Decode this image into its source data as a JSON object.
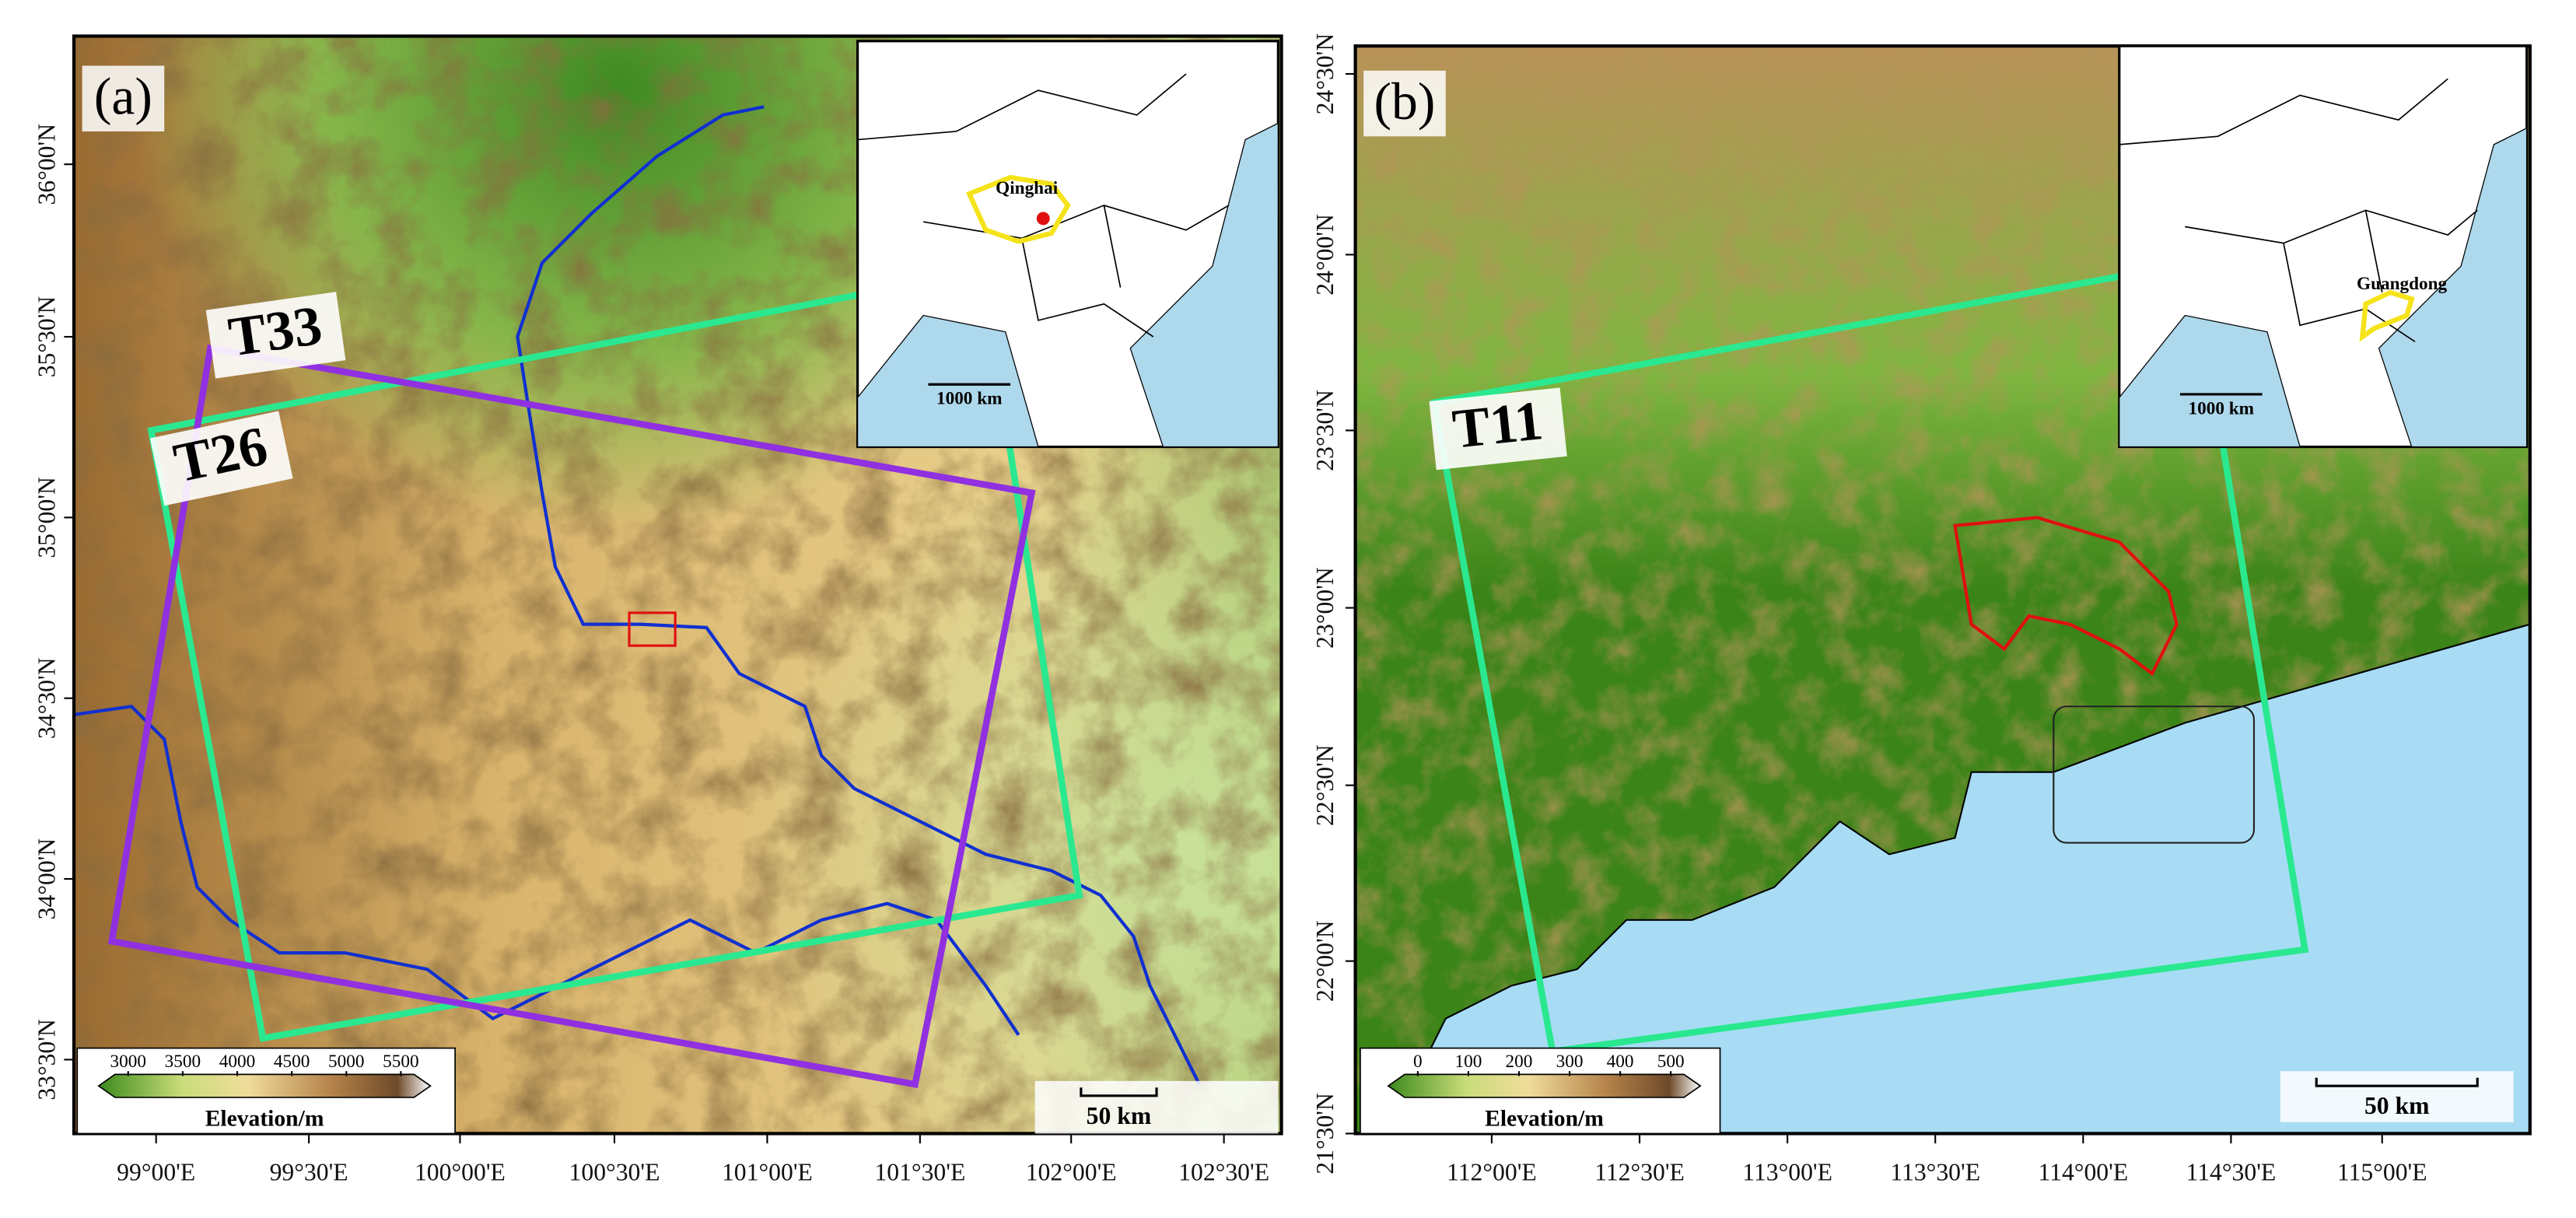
{
  "panels": [
    {
      "label": "(a)",
      "tracks": [
        "T33",
        "T26"
      ],
      "inset_label": "Qinghai",
      "inset_scale": "1000 km",
      "scale_bar": "50 km",
      "colorbar": {
        "title": "Elevation/m",
        "ticks": [
          3000,
          3500,
          4000,
          4500,
          5000,
          5500
        ]
      },
      "lat_ticks": [
        "36°00'N",
        "35°30'N",
        "35°00'N",
        "34°30'N",
        "34°00'N",
        "33°30'N"
      ],
      "lon_ticks": [
        "99°00'E",
        "99°30'E",
        "100°00'E",
        "100°30'E",
        "101°00'E",
        "101°30'E",
        "102°00'E",
        "102°30'E"
      ]
    },
    {
      "label": "(b)",
      "tracks": [
        "T11"
      ],
      "inset_label": "Guangdong",
      "inset_scale": "1000 km",
      "scale_bar": "50 km",
      "colorbar": {
        "title": "Elevation/m",
        "ticks": [
          0,
          100,
          200,
          300,
          400,
          500
        ]
      },
      "lat_ticks": [
        "24°30'N",
        "24°00'N",
        "23°30'N",
        "23°00'N",
        "22°30'N",
        "22°00'N",
        "21°30'N"
      ],
      "lon_ticks": [
        "112°00'E",
        "112°30'E",
        "113°00'E",
        "113°30'E",
        "114°00'E",
        "114°30'E",
        "115°00'E"
      ]
    }
  ]
}
